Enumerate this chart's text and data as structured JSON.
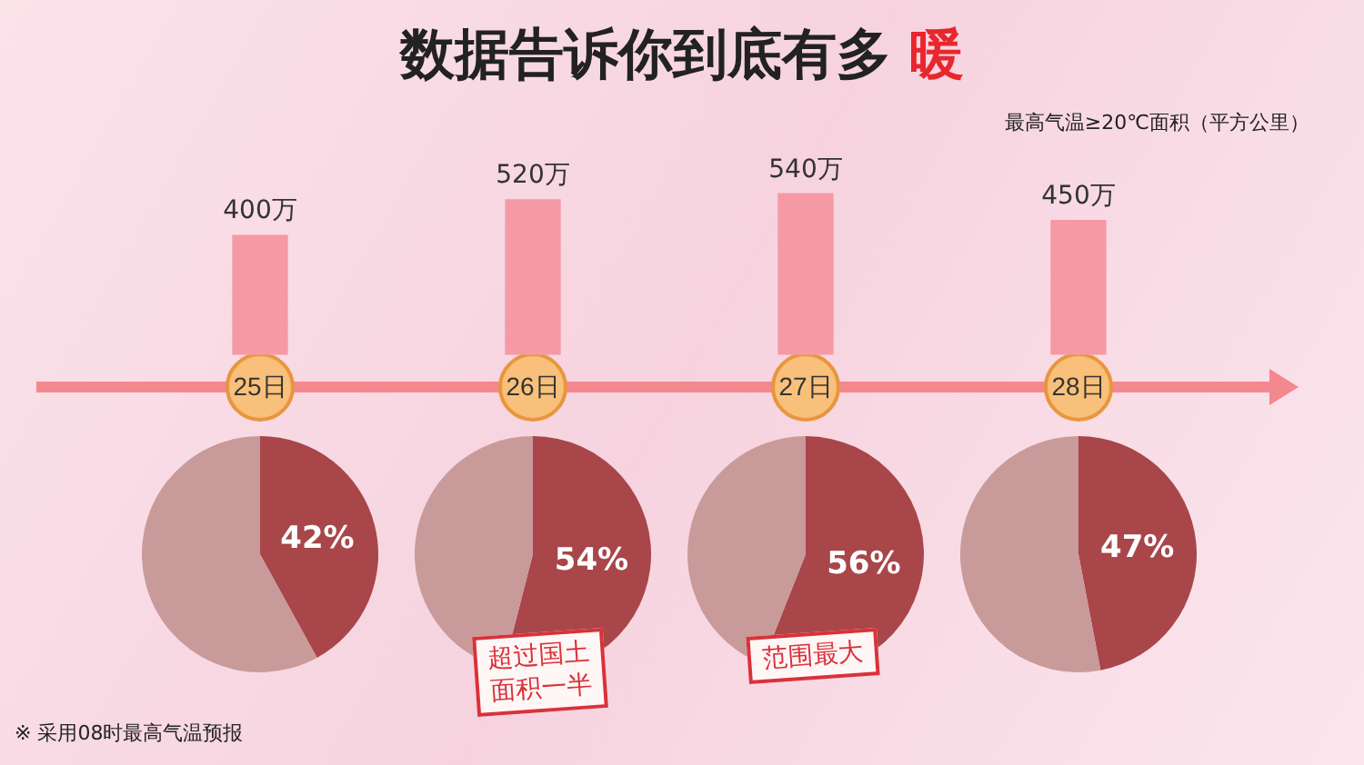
{
  "chart_data": [
    {
      "type": "bar",
      "title": "数据告诉你到底有多 暖",
      "subtitle": "最高气温≥20℃面积（平方公里）",
      "categories": [
        "25日",
        "26日",
        "27日",
        "28日"
      ],
      "values": [
        400,
        520,
        540,
        450
      ],
      "value_labels": [
        "400万",
        "520万",
        "540万",
        "450万"
      ],
      "color": "#f59aa5",
      "annotations": [
        "※ 采用08时最高气温预报"
      ]
    },
    {
      "type": "pie",
      "categories": [
        null,
        null
      ],
      "values": [
        42,
        58
      ],
      "colors": [
        "#a8464a",
        "#c99a9a"
      ],
      "value_labels": [
        "42%",
        null
      ]
    },
    {
      "type": "pie",
      "categories": [
        null,
        null
      ],
      "values": [
        54,
        46
      ],
      "colors": [
        "#a8464a",
        "#c99a9a"
      ],
      "value_labels": [
        "54%",
        null
      ],
      "annotations": [
        "超过国土面积一半"
      ]
    },
    {
      "type": "pie",
      "categories": [
        null,
        null
      ],
      "values": [
        56,
        44
      ],
      "colors": [
        "#a8464a",
        "#c99a9a"
      ],
      "value_labels": [
        "56%",
        null
      ],
      "annotations": [
        "范围最大"
      ]
    },
    {
      "type": "pie",
      "categories": [
        null,
        null
      ],
      "values": [
        47,
        53
      ],
      "colors": [
        "#a8464a",
        "#c99a9a"
      ],
      "value_labels": [
        "47%",
        null
      ]
    }
  ]
}
